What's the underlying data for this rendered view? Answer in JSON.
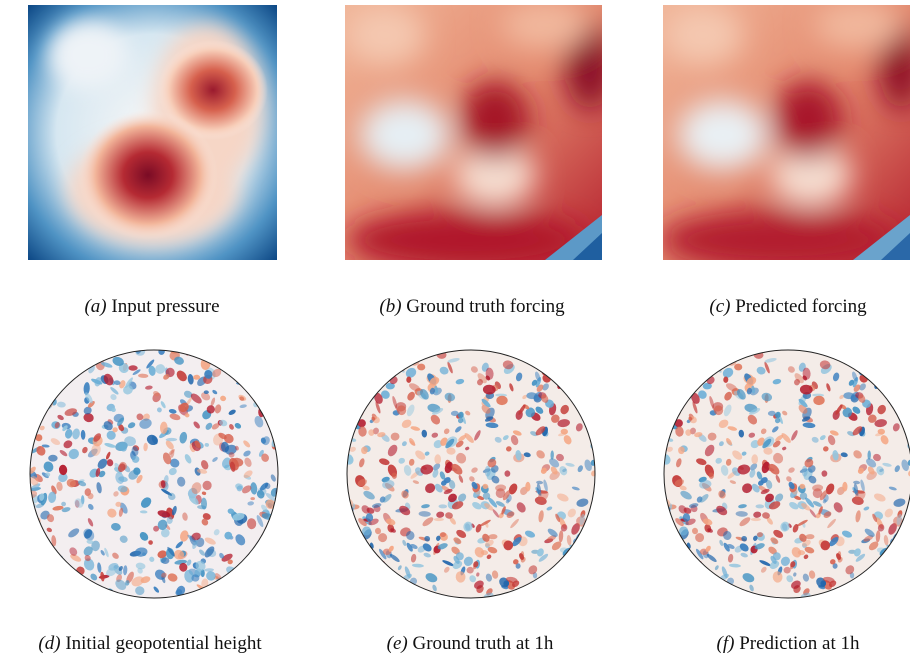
{
  "figure": {
    "panels": [
      {
        "id": "a",
        "label": "(a)",
        "caption": "Input pressure",
        "kind": "square"
      },
      {
        "id": "b",
        "label": "(b)",
        "caption": "Ground truth forcing",
        "kind": "square"
      },
      {
        "id": "c",
        "label": "(c)",
        "caption": "Predicted forcing",
        "kind": "square"
      },
      {
        "id": "d",
        "label": "(d)",
        "caption": "Initial geopotential height",
        "kind": "sphere"
      },
      {
        "id": "e",
        "label": "(e)",
        "caption": "Ground truth at 1h",
        "kind": "sphere"
      },
      {
        "id": "f",
        "label": "(f)",
        "caption": "Prediction at 1h",
        "kind": "sphere"
      }
    ],
    "colormap": {
      "name": "RdBu",
      "low": "#053061",
      "mid": "#f7f7f7",
      "high": "#67001f"
    }
  }
}
